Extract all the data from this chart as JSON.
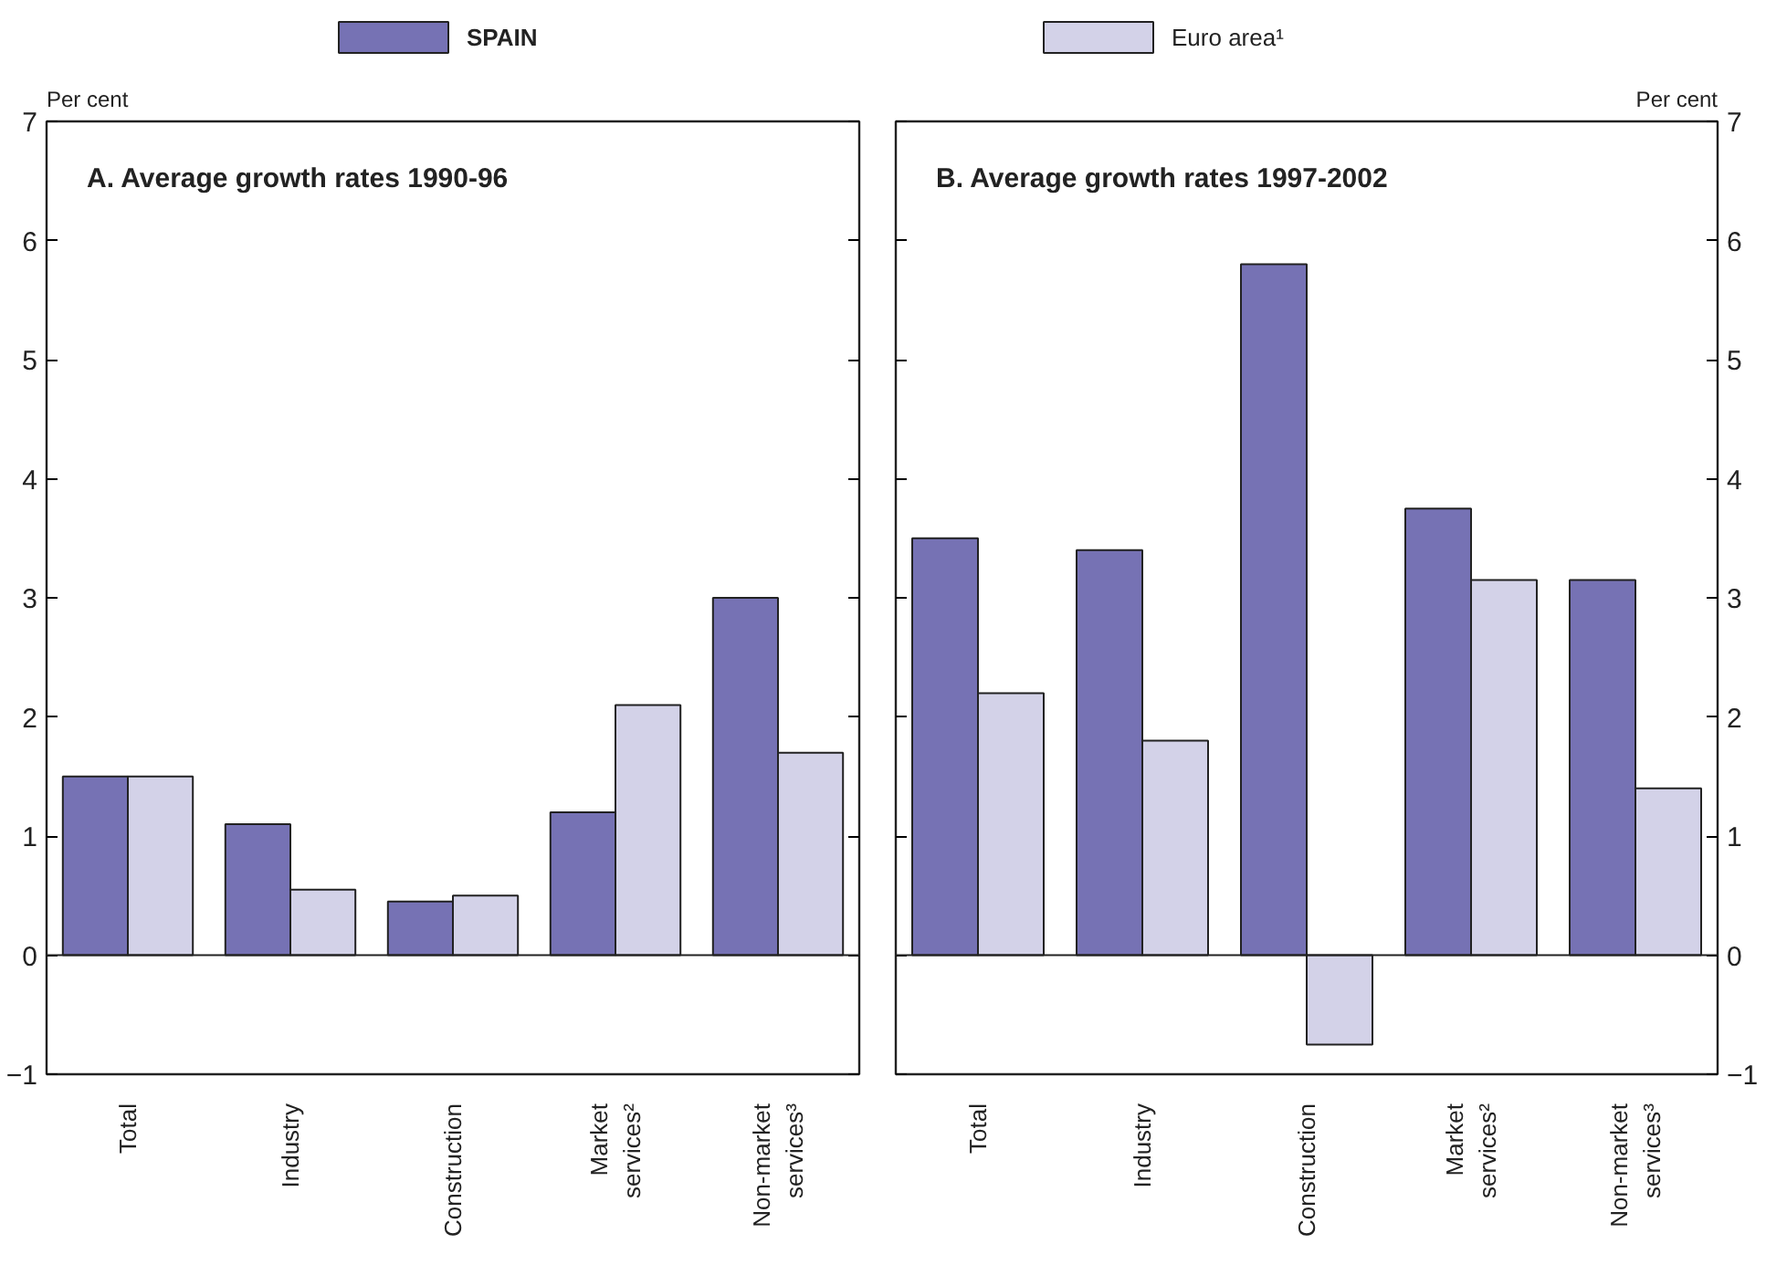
{
  "chart_data": [
    {
      "type": "bar",
      "title": "A. Average growth rates 1990-96",
      "ylabel": "Per cent",
      "categories": [
        "Total",
        "Industry",
        "Construction",
        "Market services²",
        "Non-market services³"
      ],
      "series": [
        {
          "name": "SPAIN",
          "color": "#7672b4",
          "values": [
            1.5,
            1.1,
            0.45,
            1.2,
            3.0
          ]
        },
        {
          "name": "Euro area¹",
          "color": "#d3d2e8",
          "values": [
            1.5,
            0.55,
            0.5,
            2.1,
            1.7
          ]
        }
      ],
      "ylim": [
        -1,
        7
      ],
      "yticks": [
        -1,
        0,
        1,
        2,
        3,
        4,
        5,
        6,
        7
      ],
      "legend": "top",
      "ref_lines": [
        {
          "axis": "y",
          "value": 0
        }
      ]
    },
    {
      "type": "bar",
      "title": "B. Average growth rates 1997-2002",
      "ylabel": "Per cent",
      "categories": [
        "Total",
        "Industry",
        "Construction",
        "Market services²",
        "Non-market services³"
      ],
      "series": [
        {
          "color": "#7672b4",
          "values": [
            3.5,
            3.4,
            5.8,
            3.75,
            3.15
          ]
        },
        {
          "color": "#d3d2e8",
          "values": [
            2.2,
            1.8,
            -0.75,
            3.15,
            1.4
          ]
        }
      ],
      "ylim": [
        -1,
        7
      ],
      "yticks": [
        -1,
        0,
        1,
        2,
        3,
        4,
        5,
        6,
        7
      ],
      "ref_lines": [
        {
          "axis": "y",
          "value": 0
        }
      ]
    }
  ]
}
